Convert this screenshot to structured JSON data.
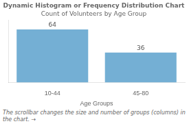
{
  "chart_data": {
    "type": "bar",
    "title": "Dynamic Histogram or Frequency Distribution Chart",
    "subtitle": "Count of Volunteers by Age Group",
    "x_label": "Age Groups",
    "categories": [
      "10-44",
      "45-80"
    ],
    "values": [
      64,
      36
    ],
    "color": "#74afd4",
    "ylim": [
      0,
      75
    ],
    "grid": false,
    "data_labels": true,
    "tick_labels": "x",
    "annotations": [
      "The scrollbar changes the size and number of groups (columns) in the chart.",
      "→"
    ]
  }
}
